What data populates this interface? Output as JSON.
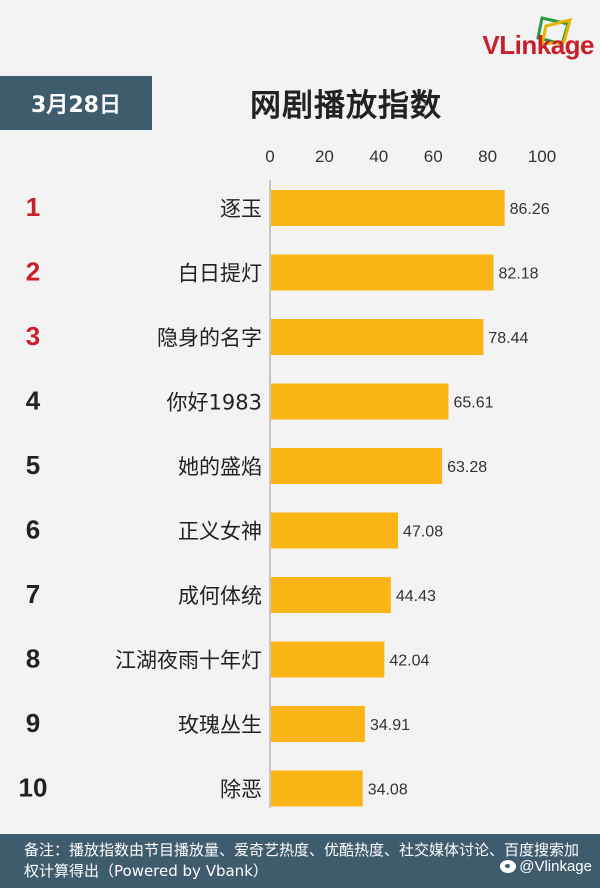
{
  "brand": {
    "logo_text": "VLinkage",
    "weibo_handle": "@Vlinkage"
  },
  "header": {
    "date": "3月28日",
    "title": "网剧播放指数"
  },
  "footer": {
    "note": "备注：播放指数由节目播放量、爱奇艺热度、优酷热度、社交媒体讨论、百度搜索加权计算得出（Powered by Vbank）"
  },
  "colors": {
    "bar": "#fbb416",
    "rank_top": "#c8202a",
    "rank_other": "#222222",
    "badge": "#3f5c6f"
  },
  "chart_data": {
    "type": "bar",
    "orientation": "horizontal",
    "title": "网剧播放指数",
    "xlim": [
      0,
      100
    ],
    "x_ticks": [
      0,
      20,
      40,
      60,
      80,
      100
    ],
    "ranks": [
      "1",
      "2",
      "3",
      "4",
      "5",
      "6",
      "7",
      "8",
      "9",
      "10"
    ],
    "categories": [
      "逐玉",
      "白日提灯",
      "隐身的名字",
      "你好1983",
      "她的盛焰",
      "正义女神",
      "成何体统",
      "江湖夜雨十年灯",
      "玫瑰丛生",
      "除恶"
    ],
    "values": [
      86.26,
      82.18,
      78.44,
      65.61,
      63.28,
      47.08,
      44.43,
      42.04,
      34.91,
      34.08
    ],
    "value_labels": [
      "86.26",
      "82.18",
      "78.44",
      "65.61",
      "63.28",
      "47.08",
      "44.43",
      "42.04",
      "34.91",
      "34.08"
    ],
    "grid": false,
    "axis_position": "top"
  }
}
